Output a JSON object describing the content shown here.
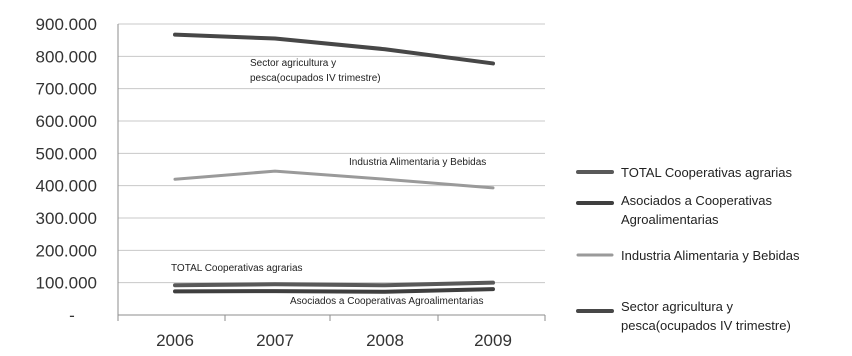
{
  "chart_data": {
    "type": "line",
    "title": "",
    "xlabel": "",
    "ylabel": "",
    "x": [
      "2006",
      "2007",
      "2008",
      "2009"
    ],
    "y_ticks": [
      "-",
      "100.000",
      "200.000",
      "300.000",
      "400.000",
      "500.000",
      "600.000",
      "700.000",
      "800.000",
      "900.000"
    ],
    "ylim": [
      0,
      900000
    ],
    "grid": "horizontal",
    "legend_position": "right",
    "series": [
      {
        "name": "TOTAL Cooperativas agrarias",
        "values": [
          92000,
          95000,
          92000,
          100000
        ],
        "color": "#595959"
      },
      {
        "name": "Asociados a Cooperativas Agroalimentarias",
        "values": [
          73000,
          74000,
          72000,
          80000
        ],
        "color": "#3f3f3f"
      },
      {
        "name": "Industria Alimentaria y Bebidas",
        "values": [
          420000,
          445000,
          420000,
          393000
        ],
        "color": "#9a9a9a"
      },
      {
        "name": "Sector agricultura y pesca(ocupados IV trimestre)",
        "values": [
          867000,
          855000,
          822000,
          778000
        ],
        "color": "#474747"
      }
    ],
    "legend_lines": [
      [
        "TOTAL Cooperativas agrarias"
      ],
      [
        "Asociados a Cooperativas",
        "Agroalimentarias"
      ],
      [
        "Industria Alimentaria y Bebidas"
      ],
      [
        "Sector agricultura y",
        "pesca(ocupados IV trimestre)"
      ]
    ],
    "annotations": [
      {
        "series": 3,
        "lines": [
          "Sector agricultura y",
          "pesca(ocupados IV trimestre)"
        ]
      },
      {
        "series": 2,
        "lines": [
          "Industria Alimentaria y Bebidas"
        ]
      },
      {
        "series": 0,
        "lines": [
          "TOTAL Cooperativas agrarias"
        ]
      },
      {
        "series": 1,
        "lines": [
          "Asociados a Cooperativas Agroalimentarias"
        ]
      }
    ]
  }
}
